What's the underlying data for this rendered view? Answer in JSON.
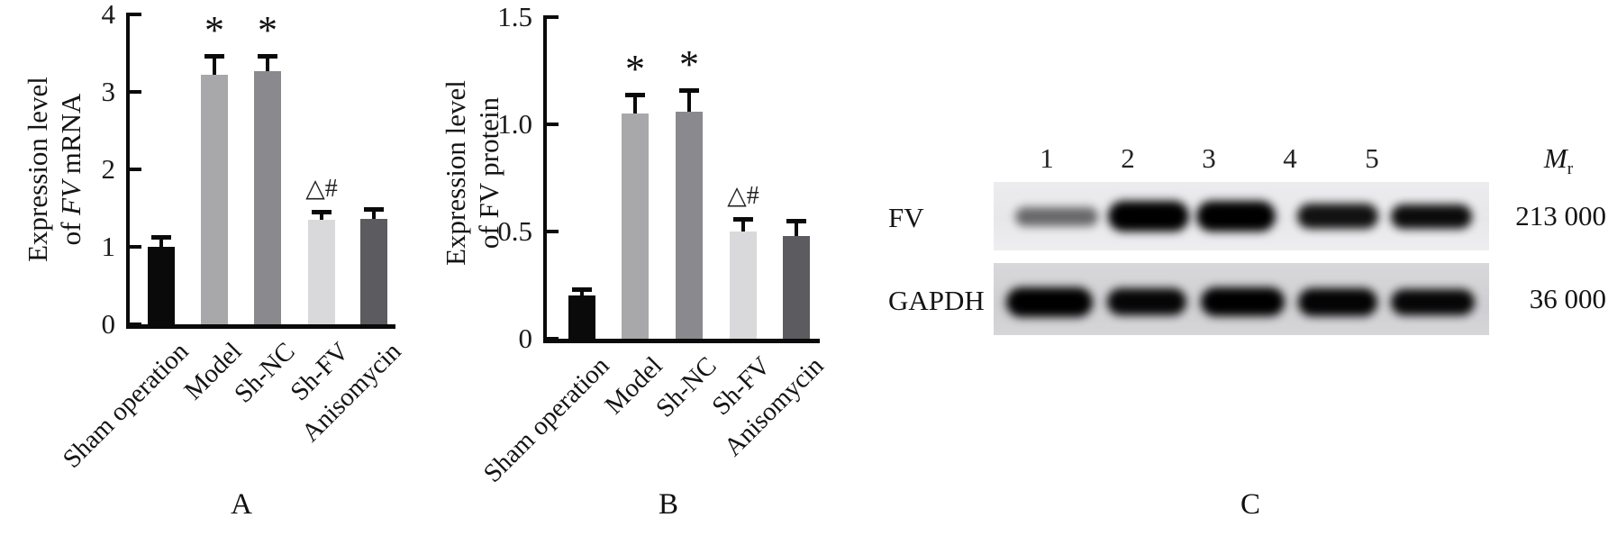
{
  "panels": {
    "a_letter": "A",
    "b_letter": "B",
    "c_letter": "C"
  },
  "chart_data": [
    {
      "type": "bar",
      "panel": "A",
      "title": "",
      "ylabel_lines": [
        "Expression level",
        "of FV mRNA"
      ],
      "ylabel_italic_token": "FV",
      "xlabel": "",
      "categories": [
        "Sham operation",
        "Model",
        "Sh-NC",
        "Sh-FV",
        "Anisomycin"
      ],
      "values": [
        1.0,
        3.22,
        3.27,
        1.35,
        1.36
      ],
      "errors": [
        0.13,
        0.24,
        0.2,
        0.1,
        0.13
      ],
      "significance": [
        "",
        "*",
        "*",
        "△#",
        ""
      ],
      "ylim": [
        0,
        4
      ],
      "ytick_labels": [
        "0",
        "1",
        "2",
        "3",
        "4"
      ],
      "ytick_values": [
        0,
        1,
        2,
        3,
        4
      ],
      "bar_colors": [
        "#0a0a0a",
        "#a8a8ab",
        "#8a8a8e",
        "#d9d9db",
        "#5c5c60"
      ],
      "grid": false,
      "legend": null
    },
    {
      "type": "bar",
      "panel": "B",
      "title": "",
      "ylabel_lines": [
        "Expression level",
        "of FV protein"
      ],
      "ylabel_italic_token": null,
      "xlabel": "",
      "categories": [
        "Sham operation",
        "Model",
        "Sh-NC",
        "Sh-FV",
        "Anisomycin"
      ],
      "values": [
        0.2,
        1.05,
        1.06,
        0.5,
        0.48
      ],
      "errors": [
        0.03,
        0.09,
        0.1,
        0.06,
        0.07
      ],
      "significance": [
        "",
        "*",
        "*",
        "△#",
        ""
      ],
      "ylim": [
        0,
        1.5
      ],
      "ytick_labels": [
        "0",
        "0.5",
        "1.0",
        "1.5"
      ],
      "ytick_values": [
        0,
        0.5,
        1.0,
        1.5
      ],
      "bar_colors": [
        "#0a0a0a",
        "#a8a8ab",
        "#8a8a8e",
        "#d9d9db",
        "#5c5c60"
      ],
      "grid": false,
      "legend": null
    },
    {
      "type": "table",
      "panel": "C",
      "kind": "western-blot",
      "lane_labels": [
        "1",
        "2",
        "3",
        "4",
        "5"
      ],
      "mr_header": "Mr",
      "rows": [
        {
          "label": "FV",
          "molecular_weight": "213 000",
          "band_intensities": [
            0.55,
            1.0,
            1.0,
            0.92,
            0.95
          ]
        },
        {
          "label": "GAPDH",
          "molecular_weight": "36 000",
          "band_intensities": [
            1.0,
            0.97,
            1.0,
            0.98,
            0.97
          ]
        }
      ]
    }
  ]
}
